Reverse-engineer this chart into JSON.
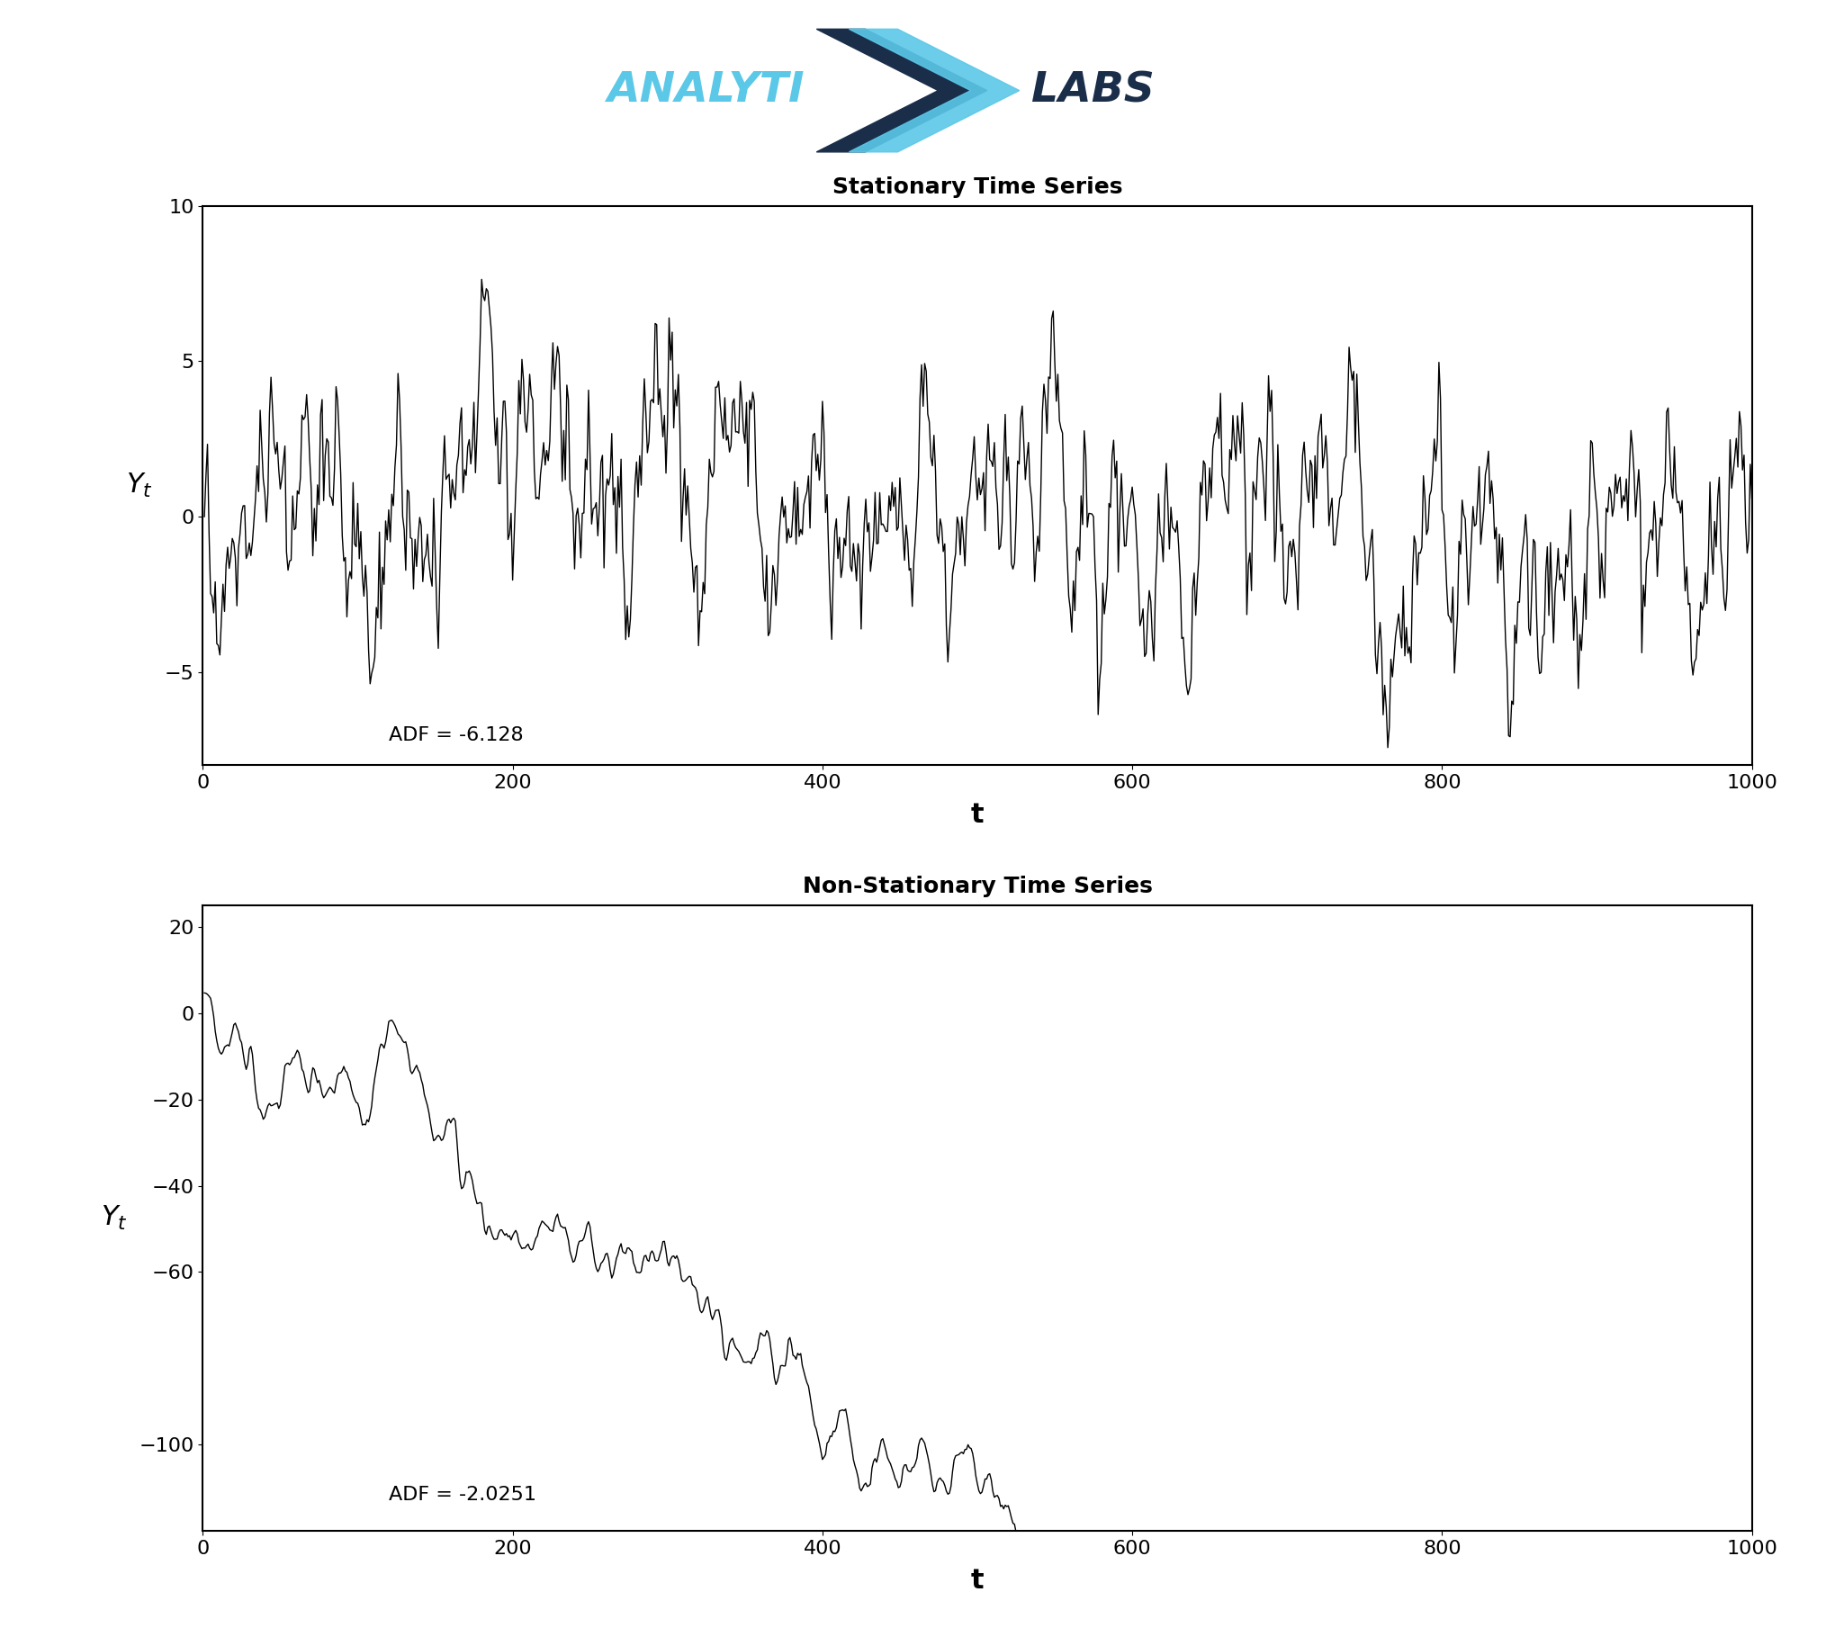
{
  "title1": "Stationary Time Series",
  "title2": "Non-Stationary Time Series",
  "xlabel": "t",
  "ylabel": "Y_t",
  "adf1": "ADF = -6.128",
  "adf2": "ADF = -2.0251",
  "xlim": [
    0,
    1000
  ],
  "ylim1": [
    -8,
    10
  ],
  "ylim2": [
    -120,
    25
  ],
  "yticks1": [
    -5,
    0,
    5,
    10
  ],
  "yticks2": [
    -100,
    -60,
    -40,
    -20,
    0,
    20
  ],
  "xticks": [
    0,
    200,
    400,
    600,
    800,
    1000
  ],
  "n": 1000,
  "background_color": "#ffffff",
  "line_color": "#000000",
  "logo_analytix_color": "#5bc8e8",
  "logo_labs_color": "#1a2e4a",
  "title_fontsize": 18,
  "axis_label_fontsize": 22,
  "tick_fontsize": 16,
  "adf_fontsize": 16
}
